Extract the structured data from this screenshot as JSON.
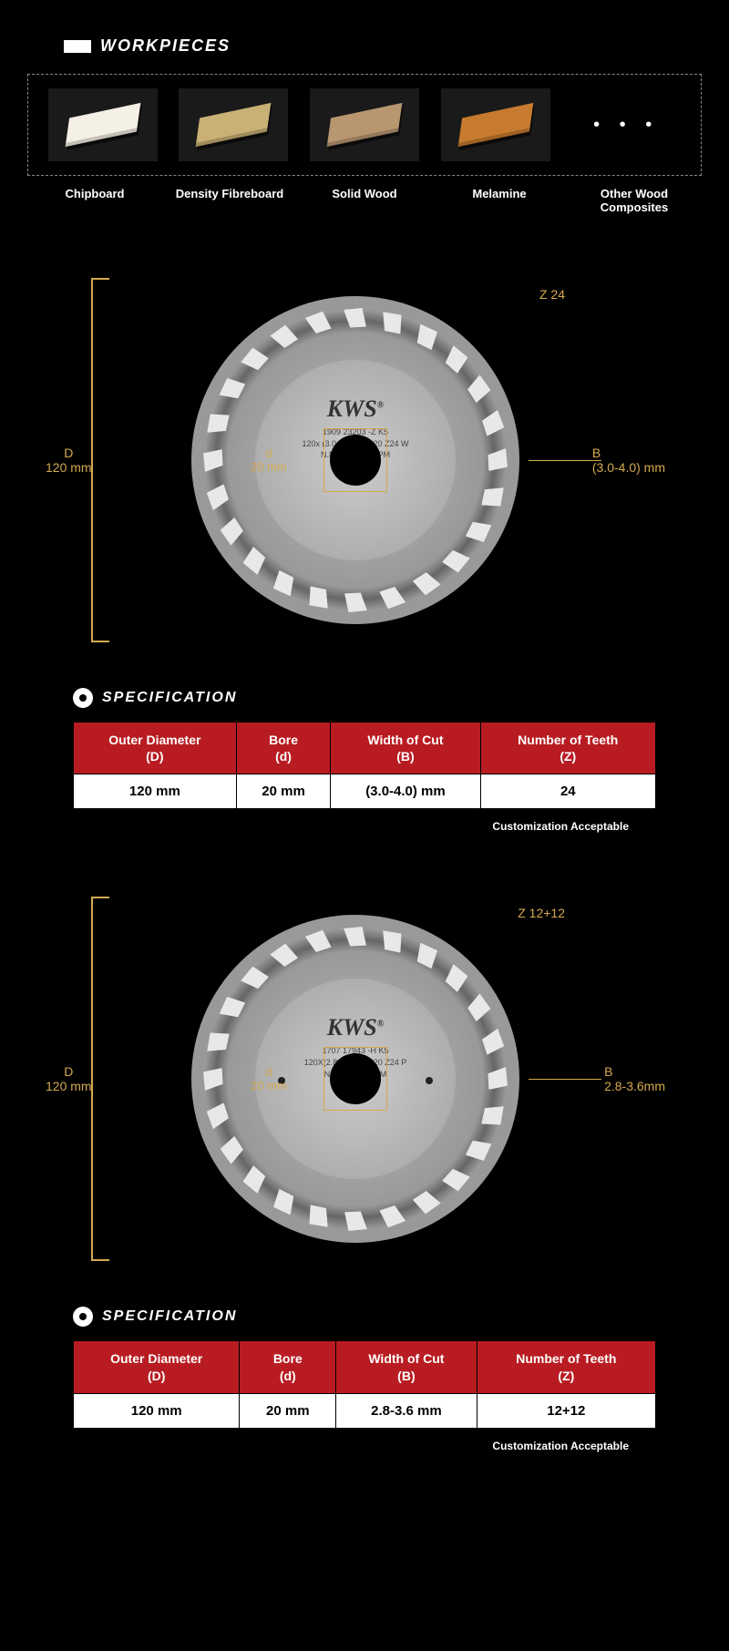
{
  "workpieces": {
    "title": "WORKPIECES",
    "items": [
      {
        "label": "Chipboard",
        "color": "#f5f0e6"
      },
      {
        "label": "Density Fibreboard",
        "color": "#c9b074"
      },
      {
        "label": "Solid Wood",
        "color": "#b89670"
      },
      {
        "label": "Melamine",
        "color": "#c77b2e"
      },
      {
        "label": "Other Wood Composites",
        "color": null
      }
    ]
  },
  "blades": [
    {
      "brand": "KWS",
      "brand_sup": "®",
      "lines": [
        "1909 23203 -Z K5",
        "120x (3.0-4.0) /2.2x20 Z24 W",
        "N.MAX 12000RPM"
      ],
      "teeth": 24,
      "ann": {
        "D": "D\n120 mm",
        "d": "d\n20 mm",
        "Z": "Z 24",
        "B": "B\n(3.0-4.0) mm"
      },
      "side_dots": false
    },
    {
      "brand": "KWS",
      "brand_sup": "®",
      "lines": [
        "1707 17943 -H K5",
        "120X(2.8-3.6)/2.2X20 Z24 P",
        "N.MAX1200RPM"
      ],
      "teeth": 24,
      "ann": {
        "D": "D\n120 mm",
        "d": "d\n20 mm",
        "Z": "Z 12+12",
        "B": "B\n2.8-3.6mm"
      },
      "side_dots": true
    }
  ],
  "spec": {
    "title": "SPECIFICATION",
    "headers": [
      "Outer Diameter\n(D)",
      "Bore\n(d)",
      "Width of Cut\n(B)",
      "Number of Teeth\n(Z)"
    ],
    "tables": [
      [
        "120 mm",
        "20 mm",
        "(3.0-4.0) mm",
        "24"
      ],
      [
        "120 mm",
        "20 mm",
        "2.8-3.6 mm",
        "12+12"
      ]
    ],
    "note": "Customization Acceptable"
  },
  "colors": {
    "accent": "#d4a94e",
    "header_bg": "#b81c22"
  }
}
